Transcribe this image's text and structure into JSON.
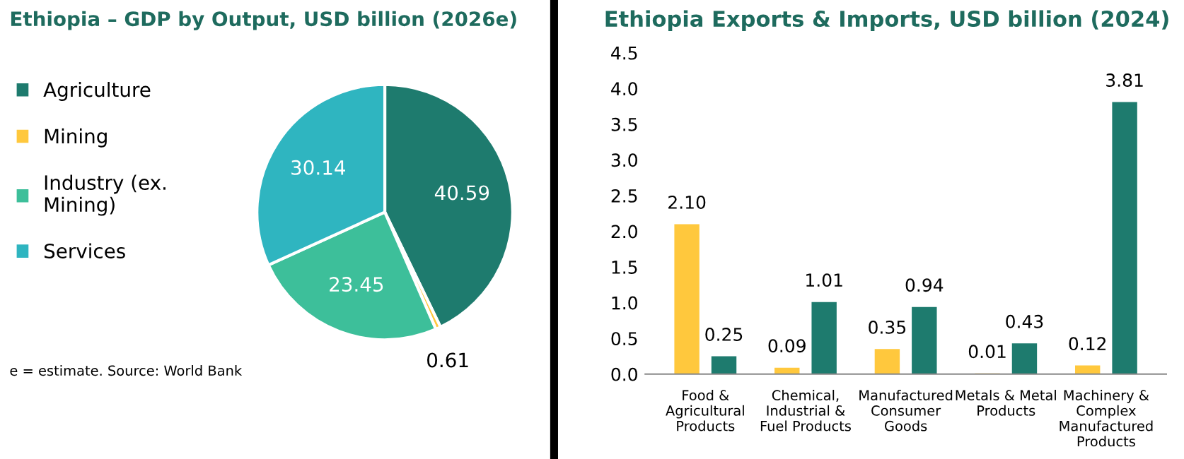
{
  "chart_data": [
    {
      "type": "pie",
      "title": "Ethiopia – GDP by Output, USD billion (2026e)",
      "categories": [
        "Agriculture",
        "Mining",
        "Industry (ex.\nMining)",
        "Services"
      ],
      "values": [
        40.59,
        0.61,
        23.45,
        30.14
      ],
      "colors": [
        "#1e7b6e",
        "#ffc83d",
        "#3dbf9a",
        "#2fb5c0"
      ],
      "data_labels": true,
      "legend": "left",
      "annotations": [
        "e = estimate. Source: World Bank"
      ]
    },
    {
      "type": "bar",
      "title": "Ethiopia Exports & Imports, USD billion (2024)",
      "categories": [
        "Food &\nAgricultural\nProducts",
        "Chemical,\nIndustrial &\nFuel Products",
        "Manufactured\nConsumer\nGoods",
        "Metals & Metal\nProducts",
        "Machinery &\nComplex\nManufactured\nProducts"
      ],
      "series": [
        {
          "color": "#ffc83d",
          "values": [
            2.1,
            0.09,
            0.35,
            0.01,
            0.12
          ],
          "value_labels": [
            "2.10",
            "0.09",
            "0.35",
            "0.01",
            "0.12"
          ]
        },
        {
          "color": "#1e7b6e",
          "values": [
            0.25,
            1.01,
            0.94,
            0.43,
            3.81
          ],
          "value_labels": [
            "0.25",
            "1.01",
            "0.94",
            "0.43",
            "3.81"
          ]
        }
      ],
      "ylim": [
        0,
        4.5
      ],
      "yticks": [
        {
          "value": 0,
          "label": "0.0"
        },
        0.5,
        {
          "value": 1,
          "label": "1.0"
        },
        1.5,
        {
          "value": 2,
          "label": "2.0"
        },
        2.5,
        {
          "value": 3,
          "label": "3.0"
        },
        3.5,
        {
          "value": 4,
          "label": "4.0"
        },
        4.5
      ],
      "grid": false,
      "legend": false
    }
  ]
}
